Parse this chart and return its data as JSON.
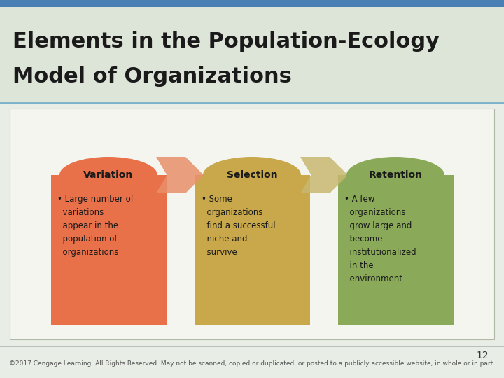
{
  "title_line1": "Elements in the Population-Ecology",
  "title_line2": "Model of Organizations",
  "title_fontsize": 22,
  "title_color": "#1a1a1a",
  "header_bg": "#dde5d8",
  "top_bar_color": "#4a7fb5",
  "content_bg": "#e8ede5",
  "slide_bg": "#e8ede5",
  "white_content_bg": "#f5f5f0",
  "boxes": [
    {
      "label": "Variation",
      "ellipse_color": "#e8714a",
      "box_color": "#e8714a",
      "text": "• Large number of\n  variations\n  appear in the\n  population of\n  organizations",
      "text_color": "#1a1a1a"
    },
    {
      "label": "Selection",
      "ellipse_color": "#c8a84b",
      "box_color": "#c8a84b",
      "text": "• Some\n  organizations\n  find a successful\n  niche and\n  survive",
      "text_color": "#1a1a1a"
    },
    {
      "label": "Retention",
      "ellipse_color": "#8aaa5a",
      "box_color": "#8aaa5a",
      "text": "• A few\n  organizations\n  grow large and\n  become\n  institutionalized\n  in the\n  environment",
      "text_color": "#1a1a1a"
    }
  ],
  "arrow1_color": "#e8906a",
  "arrow2_color": "#c8b870",
  "footer_text": "©2017 Cengage Learning. All Rights Reserved. May not be scanned, copied or duplicated, or posted to a publicly accessible website, in whole or in part.",
  "page_number": "12",
  "footer_fontsize": 6.5,
  "page_fontsize": 10,
  "sep_line_color": "#7ab0c8",
  "content_border_color": "#b0b8a8"
}
